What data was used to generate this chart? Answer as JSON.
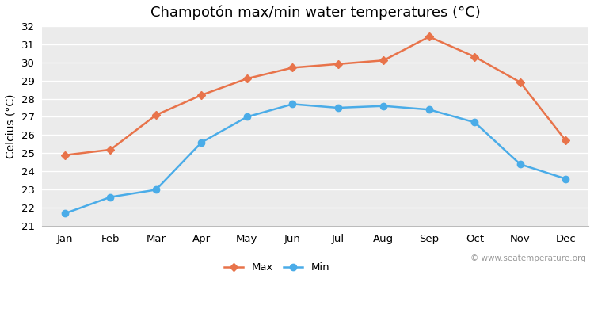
{
  "title": "Champotón max/min water temperatures (°C)",
  "ylabel": "Celcius (°C)",
  "months": [
    "Jan",
    "Feb",
    "Mar",
    "Apr",
    "May",
    "Jun",
    "Jul",
    "Aug",
    "Sep",
    "Oct",
    "Nov",
    "Dec"
  ],
  "max_temps": [
    24.9,
    25.2,
    27.1,
    28.2,
    29.1,
    29.7,
    29.9,
    30.1,
    31.4,
    30.3,
    28.9,
    25.7
  ],
  "min_temps": [
    21.7,
    22.6,
    23.0,
    25.6,
    27.0,
    27.7,
    27.5,
    27.6,
    27.4,
    26.7,
    24.4,
    23.6
  ],
  "max_color": "#e8734a",
  "min_color": "#4aace8",
  "figure_bg_color": "#ffffff",
  "plot_bg_color": "#ebebeb",
  "grid_color": "#ffffff",
  "ylim": [
    21,
    32
  ],
  "yticks": [
    21,
    22,
    23,
    24,
    25,
    26,
    27,
    28,
    29,
    30,
    31,
    32
  ],
  "legend_labels": [
    "Max",
    "Min"
  ],
  "watermark": "© www.seatemperature.org",
  "title_fontsize": 13,
  "axis_fontsize": 10,
  "tick_fontsize": 9.5,
  "max_marker": "D",
  "min_marker": "o",
  "max_marker_size": 5,
  "min_marker_size": 6,
  "line_width": 1.8
}
